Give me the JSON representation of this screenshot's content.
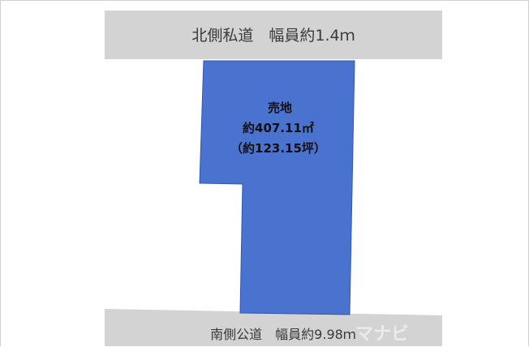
{
  "north_road": {
    "label": "北側私道　幅員約1.4ｍ"
  },
  "south_road": {
    "label": "南側公道　幅員約9.98ｍ"
  },
  "lot": {
    "title": "売地",
    "area_sqm": "約407.11㎡",
    "area_tsubo": "（約123.15坪）"
  },
  "watermark": {
    "text": "マナビ"
  },
  "colors": {
    "road": "#d3d3d3",
    "lot_fill": "#4a72cf",
    "lot_border": "#2f56b4",
    "background": "#ffffff"
  }
}
